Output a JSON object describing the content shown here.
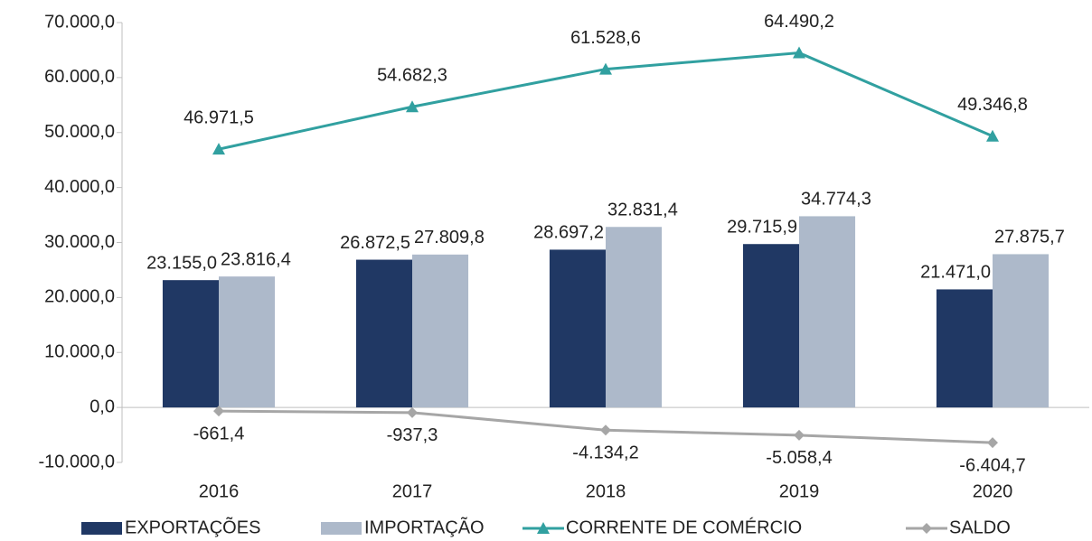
{
  "chart_data": {
    "type": "bar",
    "categories": [
      "2016",
      "2017",
      "2018",
      "2019",
      "2020"
    ],
    "series": [
      {
        "name": "EXPORTAÇÕES",
        "type": "bar",
        "color": "#203864",
        "values": [
          23155.0,
          26872.5,
          28697.2,
          29715.9,
          21471.0
        ],
        "value_labels": [
          "23.155,0",
          "26.872,5",
          "28.697,2",
          "29.715,9",
          "21.471,0"
        ]
      },
      {
        "name": "IMPORTAÇÃO",
        "type": "bar",
        "color": "#adb9ca",
        "values": [
          23816.4,
          27809.8,
          32831.4,
          34774.3,
          27875.7
        ],
        "value_labels": [
          "23.816,4",
          "27.809,8",
          "32.831,4",
          "34.774,3",
          "27.875,7"
        ]
      },
      {
        "name": "CORRENTE DE COMÉRCIO",
        "type": "line",
        "marker": "triangle",
        "color": "#31a0a0",
        "values": [
          46971.5,
          54682.3,
          61528.6,
          64490.2,
          49346.8
        ],
        "value_labels": [
          "46.971,5",
          "54.682,3",
          "61.528,6",
          "64.490,2",
          "49.346,8"
        ]
      },
      {
        "name": "SALDO",
        "type": "line",
        "marker": "diamond",
        "color": "#a6a6a6",
        "values": [
          -661.4,
          -937.3,
          -4134.2,
          -5058.4,
          -6404.7
        ],
        "value_labels": [
          "-661,4",
          "-937,3",
          "-4.134,2",
          "-5.058,4",
          "-6.404,7"
        ]
      }
    ],
    "ylim": [
      -10000,
      70000
    ],
    "yticks": [
      {
        "value": -10000,
        "label": "-10.000,0"
      },
      {
        "value": 0,
        "label": "0,0"
      },
      {
        "value": 10000,
        "label": "10.000,0"
      },
      {
        "value": 20000,
        "label": "20.000,0"
      },
      {
        "value": 30000,
        "label": "30.000,0"
      },
      {
        "value": 40000,
        "label": "40.000,0"
      },
      {
        "value": 50000,
        "label": "50.000,0"
      },
      {
        "value": 60000,
        "label": "60.000,0"
      },
      {
        "value": 70000,
        "label": "70.000,0"
      }
    ],
    "grid": false,
    "legend": "bottom"
  }
}
